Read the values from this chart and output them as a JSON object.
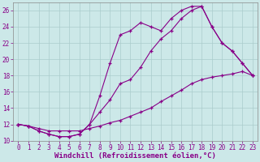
{
  "background_color": "#cce8e8",
  "grid_color": "#aacccc",
  "line_color": "#880088",
  "marker": "+",
  "xlim": [
    -0.5,
    23.5
  ],
  "ylim": [
    10,
    27
  ],
  "xlabel": "Windchill (Refroidissement éolien,°C)",
  "xlabel_fontsize": 6.5,
  "tick_fontsize": 5.5,
  "yticks": [
    10,
    12,
    14,
    16,
    18,
    20,
    22,
    24,
    26
  ],
  "xticks": [
    0,
    1,
    2,
    3,
    4,
    5,
    6,
    7,
    8,
    9,
    10,
    11,
    12,
    13,
    14,
    15,
    16,
    17,
    18,
    19,
    20,
    21,
    22,
    23
  ],
  "series1_x": [
    0,
    1,
    2,
    3,
    4,
    5,
    6,
    7,
    8,
    9,
    10,
    11,
    12,
    13,
    14,
    15,
    16,
    17,
    18,
    19,
    20,
    21,
    22,
    23
  ],
  "series1_y": [
    12.0,
    11.8,
    11.5,
    11.2,
    11.2,
    11.2,
    11.2,
    11.5,
    11.8,
    12.2,
    12.5,
    13.0,
    13.5,
    14.0,
    14.8,
    15.5,
    16.2,
    17.0,
    17.5,
    17.8,
    18.0,
    18.2,
    18.5,
    18.0
  ],
  "series2_x": [
    0,
    1,
    2,
    3,
    4,
    5,
    6,
    7,
    8,
    9,
    10,
    11,
    12,
    13,
    14,
    15,
    16,
    17,
    18,
    19,
    20,
    21,
    22,
    23
  ],
  "series2_y": [
    12.0,
    11.8,
    11.2,
    10.8,
    10.5,
    10.5,
    10.8,
    12.0,
    13.5,
    15.0,
    17.0,
    17.5,
    19.0,
    21.0,
    22.5,
    23.5,
    25.0,
    26.0,
    26.5,
    24.0,
    22.0,
    21.0,
    19.5,
    18.0
  ],
  "series3_x": [
    0,
    1,
    2,
    3,
    4,
    5,
    6,
    7,
    8,
    9,
    10,
    11,
    12,
    13,
    14,
    15,
    16,
    17,
    18,
    19,
    20,
    21,
    22,
    23
  ],
  "series3_y": [
    12.0,
    11.8,
    11.2,
    10.8,
    10.5,
    10.5,
    10.8,
    12.0,
    15.5,
    19.5,
    23.0,
    23.5,
    24.5,
    24.0,
    23.5,
    25.0,
    26.0,
    26.5,
    26.5,
    24.0,
    22.0,
    21.0,
    19.5,
    18.0
  ]
}
